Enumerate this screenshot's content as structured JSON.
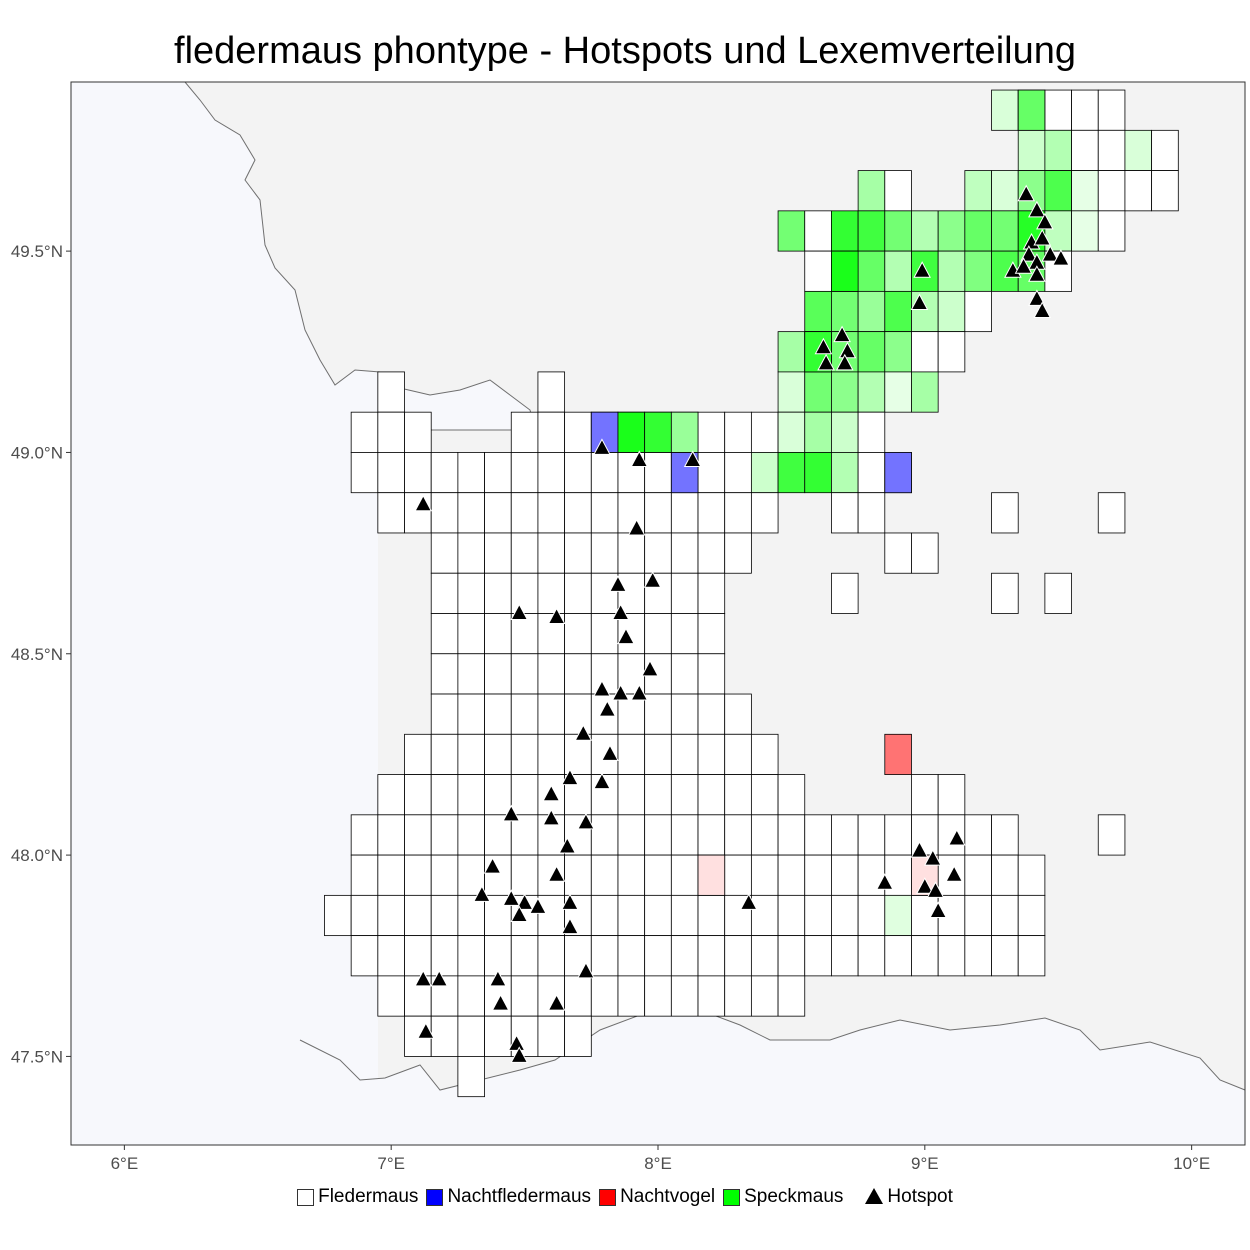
{
  "title": "fledermaus phontype - Hotspots und Lexemverteilung",
  "axes": {
    "x_ticks": [
      "6°E",
      "7°E",
      "8°E",
      "9°E",
      "10°E"
    ],
    "y_ticks": [
      "49.5°N",
      "49.0°N",
      "48.5°N",
      "48.0°N",
      "47.5°N"
    ]
  },
  "legend": {
    "items": [
      {
        "label": "Fledermaus",
        "color": "#ffffff"
      },
      {
        "label": "Nachtfledermaus",
        "color": "#0000ff"
      },
      {
        "label": "Nachtvogel",
        "color": "#ff0000"
      },
      {
        "label": "Speckmaus",
        "color": "#00ff00"
      }
    ],
    "hotspot_label": "Hotspot"
  },
  "colors": {
    "panel": "#f3f3f3",
    "outside_region": "#f7f8fc",
    "border_line": "#6f6f6f",
    "cell_border": "#000000"
  },
  "chart_data": {
    "type": "map",
    "extent": {
      "lon": [
        5.8,
        10.2
      ],
      "lat": [
        47.28,
        49.92
      ]
    },
    "cells": [
      {
        "lon": 7.8,
        "lat": 49.0,
        "category": "Nachtfledermaus",
        "intensity": 0.55
      },
      {
        "lon": 8.1,
        "lat": 48.9,
        "category": "Nachtfledermaus",
        "intensity": 0.55
      },
      {
        "lon": 8.9,
        "lat": 48.9,
        "category": "Nachtfledermaus",
        "intensity": 0.55
      },
      {
        "lon": 8.9,
        "lat": 48.2,
        "category": "Nachtvogel",
        "intensity": 0.55
      },
      {
        "lon": 8.2,
        "lat": 47.9,
        "category": "Nachtvogel",
        "intensity": 0.12
      },
      {
        "lon": 9.0,
        "lat": 47.9,
        "category": "Nachtvogel",
        "intensity": 0.12
      },
      {
        "lon": 9.4,
        "lat": 49.8,
        "category": "Speckmaus",
        "intensity": 0.6
      },
      {
        "lon": 7.9,
        "lat": 49.0,
        "category": "Speckmaus",
        "intensity": 0.9
      },
      {
        "lon": 8.0,
        "lat": 49.0,
        "category": "Speckmaus",
        "intensity": 0.8
      },
      {
        "lon": 8.1,
        "lat": 49.0,
        "category": "Speckmaus",
        "intensity": 0.4
      },
      {
        "lon": 8.6,
        "lat": 49.2,
        "category": "Speckmaus",
        "intensity": 0.8
      },
      {
        "lon": 8.7,
        "lat": 49.4,
        "category": "Speckmaus",
        "intensity": 0.9
      }
    ],
    "hotspots": [
      {
        "lon": 7.12,
        "lat": 48.87
      },
      {
        "lon": 7.79,
        "lat": 49.01
      },
      {
        "lon": 7.93,
        "lat": 48.98
      },
      {
        "lon": 8.13,
        "lat": 48.98
      },
      {
        "lon": 7.92,
        "lat": 48.81
      },
      {
        "lon": 7.85,
        "lat": 48.67
      },
      {
        "lon": 7.98,
        "lat": 48.68
      },
      {
        "lon": 7.48,
        "lat": 48.6
      },
      {
        "lon": 7.62,
        "lat": 48.59
      },
      {
        "lon": 7.86,
        "lat": 48.6
      },
      {
        "lon": 7.88,
        "lat": 48.54
      },
      {
        "lon": 7.97,
        "lat": 48.46
      },
      {
        "lon": 7.79,
        "lat": 48.41
      },
      {
        "lon": 7.86,
        "lat": 48.4
      },
      {
        "lon": 7.93,
        "lat": 48.4
      },
      {
        "lon": 7.81,
        "lat": 48.36
      },
      {
        "lon": 7.72,
        "lat": 48.3
      },
      {
        "lon": 7.82,
        "lat": 48.25
      },
      {
        "lon": 7.67,
        "lat": 48.19
      },
      {
        "lon": 7.79,
        "lat": 48.18
      },
      {
        "lon": 7.6,
        "lat": 48.15
      },
      {
        "lon": 7.45,
        "lat": 48.1
      },
      {
        "lon": 7.6,
        "lat": 48.09
      },
      {
        "lon": 7.73,
        "lat": 48.08
      },
      {
        "lon": 7.66,
        "lat": 48.02
      },
      {
        "lon": 7.38,
        "lat": 47.97
      },
      {
        "lon": 7.62,
        "lat": 47.95
      },
      {
        "lon": 7.34,
        "lat": 47.9
      },
      {
        "lon": 7.45,
        "lat": 47.89
      },
      {
        "lon": 7.5,
        "lat": 47.88
      },
      {
        "lon": 7.67,
        "lat": 47.88
      },
      {
        "lon": 7.55,
        "lat": 47.87
      },
      {
        "lon": 7.48,
        "lat": 47.85
      },
      {
        "lon": 7.67,
        "lat": 47.82
      },
      {
        "lon": 7.73,
        "lat": 47.71
      },
      {
        "lon": 7.12,
        "lat": 47.69
      },
      {
        "lon": 7.18,
        "lat": 47.69
      },
      {
        "lon": 7.4,
        "lat": 47.69
      },
      {
        "lon": 7.41,
        "lat": 47.63
      },
      {
        "lon": 7.62,
        "lat": 47.63
      },
      {
        "lon": 7.13,
        "lat": 47.56
      },
      {
        "lon": 7.47,
        "lat": 47.53
      },
      {
        "lon": 7.48,
        "lat": 47.5
      },
      {
        "lon": 8.34,
        "lat": 47.88
      },
      {
        "lon": 8.85,
        "lat": 47.93
      },
      {
        "lon": 8.98,
        "lat": 48.01
      },
      {
        "lon": 9.03,
        "lat": 47.99
      },
      {
        "lon": 9.12,
        "lat": 48.04
      },
      {
        "lon": 9.0,
        "lat": 47.92
      },
      {
        "lon": 9.04,
        "lat": 47.91
      },
      {
        "lon": 9.05,
        "lat": 47.86
      },
      {
        "lon": 9.11,
        "lat": 47.95
      },
      {
        "lon": 8.99,
        "lat": 49.45
      },
      {
        "lon": 8.98,
        "lat": 49.37
      },
      {
        "lon": 8.62,
        "lat": 49.26
      },
      {
        "lon": 8.69,
        "lat": 49.29
      },
      {
        "lon": 8.71,
        "lat": 49.25
      },
      {
        "lon": 8.63,
        "lat": 49.22
      },
      {
        "lon": 8.7,
        "lat": 49.22
      },
      {
        "lon": 9.38,
        "lat": 49.64
      },
      {
        "lon": 9.42,
        "lat": 49.6
      },
      {
        "lon": 9.45,
        "lat": 49.57
      },
      {
        "lon": 9.4,
        "lat": 49.52
      },
      {
        "lon": 9.44,
        "lat": 49.53
      },
      {
        "lon": 9.39,
        "lat": 49.49
      },
      {
        "lon": 9.47,
        "lat": 49.49
      },
      {
        "lon": 9.42,
        "lat": 49.47
      },
      {
        "lon": 9.51,
        "lat": 49.48
      },
      {
        "lon": 9.33,
        "lat": 49.45
      },
      {
        "lon": 9.37,
        "lat": 49.46
      },
      {
        "lon": 9.42,
        "lat": 49.44
      },
      {
        "lon": 9.42,
        "lat": 49.38
      },
      {
        "lon": 9.44,
        "lat": 49.35
      }
    ]
  }
}
